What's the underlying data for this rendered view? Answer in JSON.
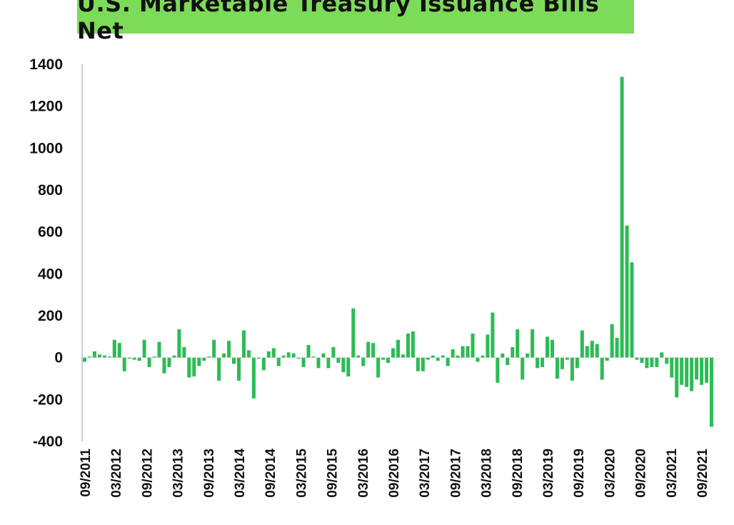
{
  "chart_data": {
    "type": "bar",
    "title": "U.S. Marketable Treasury Issuance Bills Net",
    "xlabel": "",
    "ylabel": "",
    "ylim": [
      -400,
      1400
    ],
    "yticks": [
      1400,
      1200,
      1000,
      800,
      600,
      400,
      200,
      0,
      -200,
      -400
    ],
    "xtick_labels": [
      "09/2011",
      "03/2012",
      "09/2012",
      "03/2013",
      "09/2013",
      "03/2014",
      "09/2014",
      "03/2015",
      "09/2015",
      "03/2016",
      "09/2016",
      "03/2017",
      "09/2017",
      "03/2018",
      "09/2018",
      "03/2019",
      "09/2019",
      "03/2020",
      "09/2020",
      "03/2021",
      "09/2021"
    ],
    "bar_color": "#2dbb55",
    "grid": false,
    "series": [
      {
        "values": [
          -20,
          5,
          30,
          15,
          10,
          5,
          85,
          70,
          -65,
          -5,
          -10,
          -15,
          85,
          -45,
          5,
          75,
          -75,
          -45,
          10,
          135,
          50,
          -95,
          -90,
          -40,
          -15,
          5,
          85,
          -110,
          20,
          80,
          -30,
          -110,
          130,
          35,
          -195,
          -5,
          -60,
          30,
          45,
          -40,
          10,
          25,
          20,
          -5,
          -45,
          60,
          5,
          -50,
          20,
          -50,
          50,
          -25,
          -70,
          -90,
          235,
          10,
          -40,
          75,
          70,
          -95,
          -10,
          -25,
          45,
          85,
          15,
          115,
          125,
          -65,
          -65,
          -10,
          10,
          -15,
          10,
          -40,
          40,
          10,
          55,
          55,
          115,
          -20,
          10,
          110,
          215,
          -120,
          20,
          -35,
          50,
          135,
          -105,
          20,
          135,
          -50,
          -45,
          100,
          85,
          -100,
          -55,
          -10,
          -110,
          -50,
          130,
          55,
          80,
          65,
          -105,
          -15,
          160,
          95,
          1340,
          630,
          455,
          -10,
          -25,
          -50,
          -45,
          -45,
          25,
          -30,
          -95,
          -190,
          -130,
          -140,
          -160,
          -105,
          -130,
          -120,
          -330
        ]
      }
    ]
  }
}
